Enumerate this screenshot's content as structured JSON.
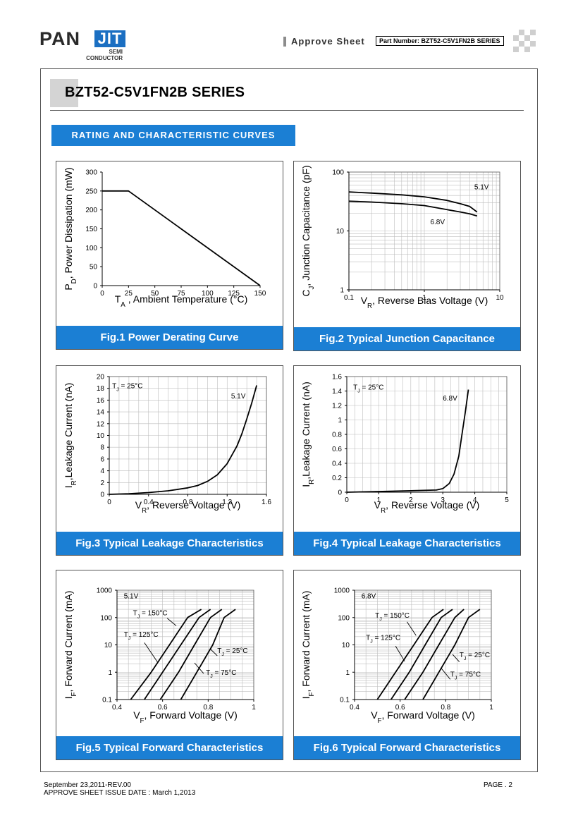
{
  "header": {
    "logo_main": "PAN",
    "logo_accent": "JIT",
    "logo_sub1": "SEMI",
    "logo_sub2": "CONDUCTOR",
    "approve": "Approve Sheet",
    "part_number": "Part Number: BZT52-C5V1FN2B SERIES"
  },
  "title": "BZT52-C5V1FN2B SERIES",
  "section_title": "RATING AND CHARACTERISTIC CURVES",
  "footer": {
    "date": "September 23,2011-REV.00",
    "issue": "APPROVE SHEET ISSUE DATE : March 1,2013",
    "page": "PAGE . 2"
  },
  "chart_data": [
    {
      "id": "fig1",
      "type": "line",
      "caption": "Fig.1 Power Derating Curve",
      "ylabel": "P_D, Power Dissipation (mW)",
      "xlabel": "T_A , Ambient Temperature  (°C)",
      "xscale": "linear",
      "yscale": "linear",
      "xlim": [
        0,
        150
      ],
      "ylim": [
        0,
        300
      ],
      "xticks": [
        0,
        25,
        50,
        75,
        100,
        125,
        150
      ],
      "yticks": [
        0,
        50,
        100,
        150,
        200,
        250,
        300
      ],
      "grid": false,
      "series": [
        {
          "x": [
            0,
            25,
            150
          ],
          "y": [
            250,
            250,
            0
          ]
        }
      ],
      "annotations": []
    },
    {
      "id": "fig2",
      "type": "line",
      "caption": "Fig.2 Typical Junction Capacitance",
      "ylabel": "C_J, Junction Capacitance (pF)",
      "xlabel": "V_R, Reverse Bias Voltage (V)",
      "xscale": "log",
      "yscale": "log",
      "xlim": [
        0.1,
        10
      ],
      "ylim": [
        1,
        100
      ],
      "xticks": [
        0.1,
        1,
        10
      ],
      "xticklabels": [
        "0.1",
        "1",
        "10"
      ],
      "yticks": [
        1,
        10,
        100
      ],
      "yticklabels": [
        "1",
        "10",
        "100"
      ],
      "grid": true,
      "series": [
        {
          "name": "5.1V",
          "x": [
            0.1,
            0.2,
            0.5,
            1,
            2,
            3,
            4,
            5
          ],
          "y": [
            46,
            44,
            41,
            38,
            33,
            29,
            26,
            21
          ]
        },
        {
          "name": "6.8V",
          "x": [
            0.1,
            0.2,
            0.5,
            1,
            2,
            3,
            4,
            5
          ],
          "y": [
            32,
            31,
            29,
            27,
            23,
            21,
            19.5,
            18
          ]
        }
      ],
      "annotations": [
        {
          "text": "5.1V",
          "x": 4.6,
          "y": 51
        },
        {
          "text": "6.8V",
          "x": 1.2,
          "y": 13
        }
      ]
    },
    {
      "id": "fig3",
      "type": "line",
      "caption": "Fig.3 Typical Leakage Characteristics",
      "ylabel": "I_R,Leakage Current (nA)",
      "xlabel": "V_R, Reverse Voltage (V)",
      "xscale": "linear",
      "yscale": "linear",
      "xlim": [
        0,
        1.6
      ],
      "ylim": [
        0,
        20
      ],
      "xticks": [
        0,
        0.4,
        0.8,
        1.2,
        1.6
      ],
      "xticklabels": [
        "0",
        "0.4",
        "0.8",
        "1.2",
        "1.6"
      ],
      "yticks": [
        0,
        2,
        4,
        6,
        8,
        10,
        12,
        14,
        16,
        18,
        20
      ],
      "grid": true,
      "series": [
        {
          "name": "5.1V",
          "x": [
            0,
            0.2,
            0.4,
            0.6,
            0.8,
            0.9,
            1.0,
            1.1,
            1.2,
            1.3,
            1.35,
            1.4,
            1.45,
            1.5
          ],
          "y": [
            0,
            0.1,
            0.3,
            0.6,
            1.1,
            1.5,
            2.2,
            3.3,
            5.2,
            8.2,
            10.3,
            12.8,
            15.5,
            18.5
          ]
        }
      ],
      "annotations": [
        {
          "text": "T_J = 25°C",
          "x": 0.03,
          "y": 18
        },
        {
          "text": "5.1V",
          "x": 1.24,
          "y": 16.3
        }
      ]
    },
    {
      "id": "fig4",
      "type": "line",
      "caption": "Fig.4 Typical Leakage Characteristics",
      "ylabel": "I_R,Leakage Current (nA)",
      "xlabel": "V_R, Reverse Voltage (V)",
      "xscale": "linear",
      "yscale": "linear",
      "xlim": [
        0,
        5
      ],
      "ylim": [
        0,
        1.6
      ],
      "xticks": [
        0,
        1,
        2,
        3,
        4,
        5
      ],
      "yticks": [
        0,
        0.2,
        0.4,
        0.6,
        0.8,
        1,
        1.2,
        1.4,
        1.6
      ],
      "yticklabels": [
        "0",
        "0.2",
        "0.4",
        "0.6",
        "0.8",
        "1",
        "1.2",
        "1.4",
        "1.6"
      ],
      "grid": true,
      "series": [
        {
          "name": "6.8V",
          "x": [
            0,
            1,
            2,
            2.8,
            3.0,
            3.2,
            3.35,
            3.5,
            3.6,
            3.7,
            3.8
          ],
          "y": [
            0,
            0.01,
            0.02,
            0.03,
            0.05,
            0.12,
            0.25,
            0.5,
            0.8,
            1.1,
            1.42
          ]
        }
      ],
      "annotations": [
        {
          "text": "T_J = 25°C",
          "x": 0.2,
          "y": 1.42
        },
        {
          "text": "6.8V",
          "x": 3.0,
          "y": 1.27
        }
      ]
    },
    {
      "id": "fig5",
      "type": "line",
      "caption": "Fig.5 Typical Forward Characteristics",
      "ylabel": "I_F, Forward Current (mA)",
      "xlabel": "V_F, Forward Voltage (V)",
      "xscale": "linear",
      "yscale": "log",
      "xlim": [
        0.4,
        1
      ],
      "ylim": [
        0.1,
        1000
      ],
      "xticks": [
        0.4,
        0.6,
        0.8,
        1
      ],
      "xticklabels": [
        "0.4",
        "0.6",
        "0.8",
        "1"
      ],
      "yticks": [
        0.1,
        1,
        10,
        100,
        1000
      ],
      "yticklabels": [
        "0.1",
        "1",
        "10",
        "100",
        "1000"
      ],
      "grid": true,
      "series": [
        {
          "name": "T_J = 150°C",
          "x": [
            0.46,
            0.55,
            0.63,
            0.71,
            0.77
          ],
          "y": [
            0.1,
            1,
            10,
            100,
            200
          ]
        },
        {
          "name": "T_J = 125°C",
          "x": [
            0.52,
            0.6,
            0.68,
            0.76,
            0.81
          ],
          "y": [
            0.1,
            1,
            10,
            100,
            200
          ]
        },
        {
          "name": "T_J = 75°C",
          "x": [
            0.59,
            0.67,
            0.74,
            0.81,
            0.86
          ],
          "y": [
            0.1,
            1,
            10,
            100,
            200
          ]
        },
        {
          "name": "T_J = 25°C",
          "x": [
            0.68,
            0.75,
            0.82,
            0.87,
            0.92
          ],
          "y": [
            0.1,
            1,
            10,
            100,
            200
          ]
        }
      ],
      "annotations": [
        {
          "text": "5.1V",
          "x": 0.43,
          "y": 500
        },
        {
          "text": "T_J = 150°C",
          "x": 0.47,
          "y": 120
        },
        {
          "text": "T_J = 125°C",
          "x": 0.43,
          "y": 20
        },
        {
          "text": "T_J = 25°C",
          "x": 0.84,
          "y": 5
        },
        {
          "text": "T_J = 75°C",
          "x": 0.79,
          "y": 0.8
        }
      ]
    },
    {
      "id": "fig6",
      "type": "line",
      "caption": "Fig.6 Typical Forward Characteristics",
      "ylabel": "I_F, Forward Current (mA)",
      "xlabel": "V_F, Forward Voltage (V)",
      "xscale": "linear",
      "yscale": "log",
      "xlim": [
        0.4,
        1
      ],
      "ylim": [
        0.1,
        1000
      ],
      "xticks": [
        0.4,
        0.6,
        0.8,
        1
      ],
      "xticklabels": [
        "0.4",
        "0.6",
        "0.8",
        "1"
      ],
      "yticks": [
        0.1,
        1,
        10,
        100,
        1000
      ],
      "yticklabels": [
        "0.1",
        "1",
        "10",
        "100",
        "1000"
      ],
      "grid": true,
      "series": [
        {
          "name": "T_J = 150°C",
          "x": [
            0.5,
            0.58,
            0.66,
            0.74,
            0.79
          ],
          "y": [
            0.1,
            1,
            10,
            100,
            200
          ]
        },
        {
          "name": "T_J = 125°C",
          "x": [
            0.56,
            0.64,
            0.71,
            0.78,
            0.83
          ],
          "y": [
            0.1,
            1,
            10,
            100,
            200
          ]
        },
        {
          "name": "T_J = 75°C",
          "x": [
            0.62,
            0.7,
            0.77,
            0.84,
            0.88
          ],
          "y": [
            0.1,
            1,
            10,
            100,
            200
          ]
        },
        {
          "name": "T_J = 25°C",
          "x": [
            0.7,
            0.77,
            0.84,
            0.9,
            0.95
          ],
          "y": [
            0.1,
            1,
            10,
            100,
            200
          ]
        }
      ],
      "annotations": [
        {
          "text": "6.8V",
          "x": 0.43,
          "y": 500
        },
        {
          "text": "T_J = 150°C",
          "x": 0.49,
          "y": 100
        },
        {
          "text": "T_J = 125°C",
          "x": 0.45,
          "y": 15
        },
        {
          "text": "T_J = 25°C",
          "x": 0.86,
          "y": 3.5
        },
        {
          "text": "T_J = 75°C",
          "x": 0.82,
          "y": 0.7
        }
      ]
    }
  ]
}
